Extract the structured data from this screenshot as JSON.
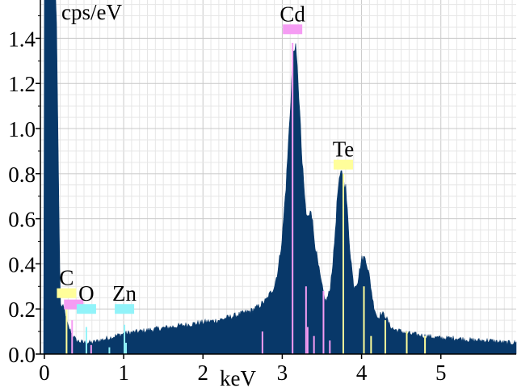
{
  "chart_data": {
    "type": "area",
    "title": "",
    "xlabel": "keV",
    "ylabel": "cps/eV",
    "xlim": [
      -0.05,
      5.95
    ],
    "ylim": [
      0,
      1.57
    ],
    "x_ticks": [
      0,
      1,
      2,
      3,
      4,
      5
    ],
    "x_tick_labels": [
      "0",
      "1",
      "2",
      "3",
      "4",
      "5"
    ],
    "y_ticks": [
      0.0,
      0.2,
      0.4,
      0.6,
      0.8,
      1.0,
      1.2,
      1.4
    ],
    "y_tick_labels": [
      "0.0",
      "0.2",
      "0.4",
      "0.6",
      "0.8",
      "1.0",
      "1.2",
      "1.4"
    ],
    "grid": true,
    "fill_color": "#083869",
    "series": [
      {
        "x": [
          0.0,
          0.05,
          0.1,
          0.15,
          0.2,
          0.25,
          0.3,
          0.4,
          0.5,
          0.6,
          0.7,
          0.8,
          0.9,
          1.0,
          1.2,
          1.4,
          1.6,
          1.8,
          2.0,
          2.2,
          2.4,
          2.6,
          2.7,
          2.8,
          2.9,
          2.95,
          3.0,
          3.05,
          3.1,
          3.13,
          3.16,
          3.2,
          3.25,
          3.3,
          3.33,
          3.36,
          3.4,
          3.45,
          3.5,
          3.55,
          3.6,
          3.65,
          3.7,
          3.75,
          3.8,
          3.85,
          3.9,
          3.95,
          4.0,
          4.05,
          4.1,
          4.15,
          4.2,
          4.25,
          4.3,
          4.35,
          4.4,
          4.5,
          4.6,
          4.8,
          5.0,
          5.2,
          5.4,
          5.6,
          5.8,
          5.95
        ],
        "y": [
          1.57,
          1.57,
          1.57,
          1.57,
          0.22,
          0.2,
          0.12,
          0.06,
          0.05,
          0.05,
          0.06,
          0.07,
          0.08,
          0.09,
          0.1,
          0.11,
          0.12,
          0.13,
          0.14,
          0.15,
          0.17,
          0.19,
          0.21,
          0.24,
          0.3,
          0.38,
          0.52,
          0.76,
          1.08,
          1.3,
          1.38,
          1.22,
          0.85,
          0.62,
          0.6,
          0.66,
          0.52,
          0.4,
          0.3,
          0.23,
          0.28,
          0.45,
          0.72,
          0.82,
          0.74,
          0.48,
          0.3,
          0.32,
          0.42,
          0.43,
          0.34,
          0.22,
          0.16,
          0.18,
          0.17,
          0.13,
          0.11,
          0.1,
          0.09,
          0.08,
          0.07,
          0.07,
          0.06,
          0.06,
          0.05,
          0.05
        ]
      }
    ],
    "element_markers": [
      {
        "label": "C",
        "x": 0.28,
        "y": 0.27,
        "color": "#fffe9a"
      },
      {
        "label": "O",
        "x": 0.53,
        "y": 0.2,
        "color": "#91f3f9"
      },
      {
        "label": "Zn",
        "x": 1.01,
        "y": 0.2,
        "color": "#91f3f9"
      },
      {
        "label": "Cd",
        "x": 3.13,
        "y": 1.44,
        "color": "#f59cf3"
      },
      {
        "label": "Te",
        "x": 3.77,
        "y": 0.84,
        "color": "#fffe9a"
      }
    ],
    "extra_markers": [
      {
        "x": 0.37,
        "y": 0.22,
        "color": "#f59cf3"
      }
    ],
    "element_lines": [
      {
        "x": 0.28,
        "y": 0.2,
        "color": "#fffe9a"
      },
      {
        "x": 0.35,
        "y": 0.15,
        "color": "#f59cf3"
      },
      {
        "x": 0.53,
        "y": 0.12,
        "color": "#91f3f9"
      },
      {
        "x": 0.59,
        "y": 0.04,
        "color": "#f59cf3"
      },
      {
        "x": 0.82,
        "y": 0.03,
        "color": "#91f3f9"
      },
      {
        "x": 1.01,
        "y": 0.13,
        "color": "#91f3f9"
      },
      {
        "x": 1.03,
        "y": 0.05,
        "color": "#91f3f9"
      },
      {
        "x": 2.75,
        "y": 0.1,
        "color": "#f59cf3"
      },
      {
        "x": 3.13,
        "y": 1.38,
        "color": "#f59cf3"
      },
      {
        "x": 3.3,
        "y": 0.3,
        "color": "#f59cf3"
      },
      {
        "x": 3.32,
        "y": 0.12,
        "color": "#f59cf3"
      },
      {
        "x": 3.4,
        "y": 0.08,
        "color": "#f59cf3"
      },
      {
        "x": 3.52,
        "y": 0.28,
        "color": "#f59cf3"
      },
      {
        "x": 3.6,
        "y": 0.06,
        "color": "#f59cf3"
      },
      {
        "x": 3.77,
        "y": 0.8,
        "color": "#fffe9a"
      },
      {
        "x": 4.03,
        "y": 0.3,
        "color": "#fffe9a"
      },
      {
        "x": 4.12,
        "y": 0.08,
        "color": "#fffe9a"
      },
      {
        "x": 4.3,
        "y": 0.15,
        "color": "#fffe9a"
      },
      {
        "x": 4.57,
        "y": 0.1,
        "color": "#fffe9a"
      },
      {
        "x": 4.8,
        "y": 0.08,
        "color": "#fffe9a"
      }
    ]
  }
}
